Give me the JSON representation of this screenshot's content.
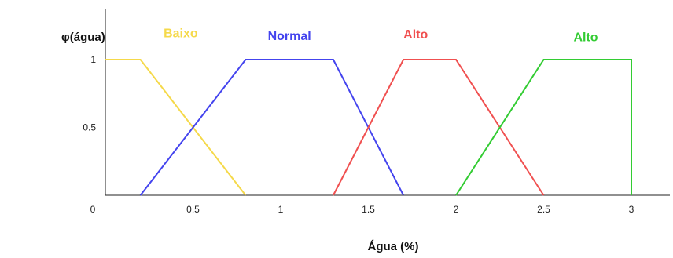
{
  "chart_data": {
    "type": "line",
    "ylabel": "φ(água)",
    "xlabel": "Água (%)",
    "xlim": [
      0,
      3.2
    ],
    "ylim": [
      0,
      1.3
    ],
    "x_ticks": [
      {
        "value": 0,
        "label": "0"
      },
      {
        "value": 0.5,
        "label": "0.5"
      },
      {
        "value": 1,
        "label": "1"
      },
      {
        "value": 1.5,
        "label": "1.5"
      },
      {
        "value": 2,
        "label": "2"
      },
      {
        "value": 2.5,
        "label": "2.5"
      },
      {
        "value": 3,
        "label": "3"
      }
    ],
    "y_ticks": [
      {
        "value": 0.5,
        "label": "0.5"
      },
      {
        "value": 1,
        "label": "1"
      }
    ],
    "series": [
      {
        "name": "Baixo",
        "color": "#f5d94a",
        "points": [
          [
            0,
            1
          ],
          [
            0.2,
            1
          ],
          [
            0.8,
            0
          ]
        ]
      },
      {
        "name": "Normal",
        "color": "#4444ee",
        "points": [
          [
            0.2,
            0
          ],
          [
            0.8,
            1
          ],
          [
            1.3,
            1
          ],
          [
            1.7,
            0
          ]
        ]
      },
      {
        "name": "Alto",
        "color": "#f05050",
        "points": [
          [
            1.3,
            0
          ],
          [
            1.7,
            1
          ],
          [
            2.0,
            1
          ],
          [
            2.5,
            0
          ]
        ]
      },
      {
        "name": "Alto",
        "color": "#33cc33",
        "points": [
          [
            2.0,
            0
          ],
          [
            2.5,
            1
          ],
          [
            3.0,
            1
          ],
          [
            3.0,
            0
          ]
        ]
      }
    ],
    "grid": false
  }
}
